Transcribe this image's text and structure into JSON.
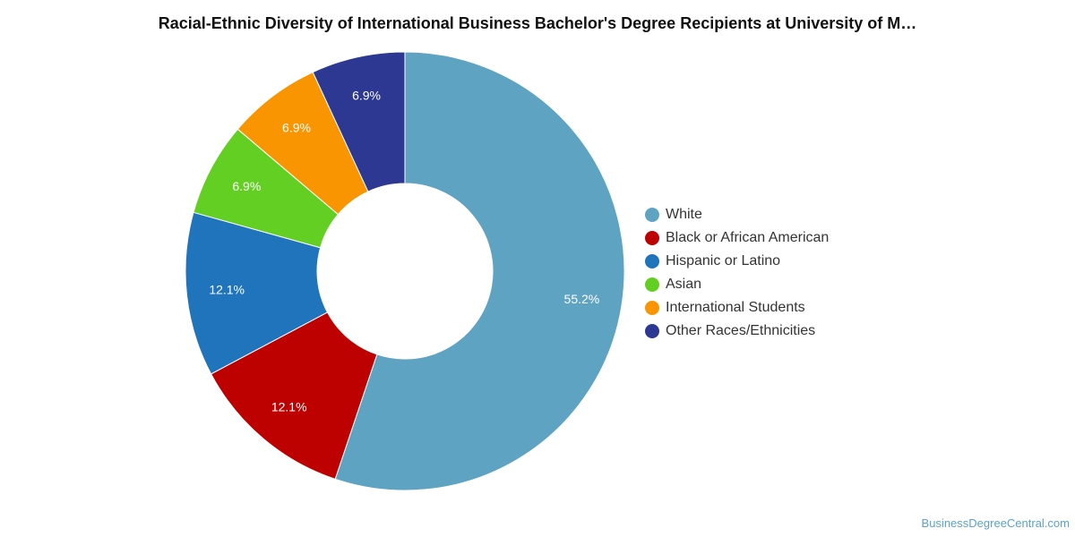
{
  "chart_data": {
    "type": "pie",
    "title": "Racial-Ethnic Diversity of International Business Bachelor's Degree Recipients at University of M…",
    "categories": [
      "White",
      "Black or African American",
      "Hispanic or Latino",
      "Asian",
      "International Students",
      "Other Races/Ethnicities"
    ],
    "values": [
      55.2,
      12.1,
      12.1,
      6.9,
      6.9,
      6.9
    ],
    "labels": [
      "55.2%",
      "12.1%",
      "12.1%",
      "6.9%",
      "6.9%",
      "6.9%"
    ],
    "colors": [
      "#5ea3c1",
      "#bd0000",
      "#1f74bb",
      "#62cf22",
      "#f99500",
      "#2c3891"
    ],
    "donut": true,
    "legend_position": "right"
  },
  "watermark": "BusinessDegreeCentral.com"
}
